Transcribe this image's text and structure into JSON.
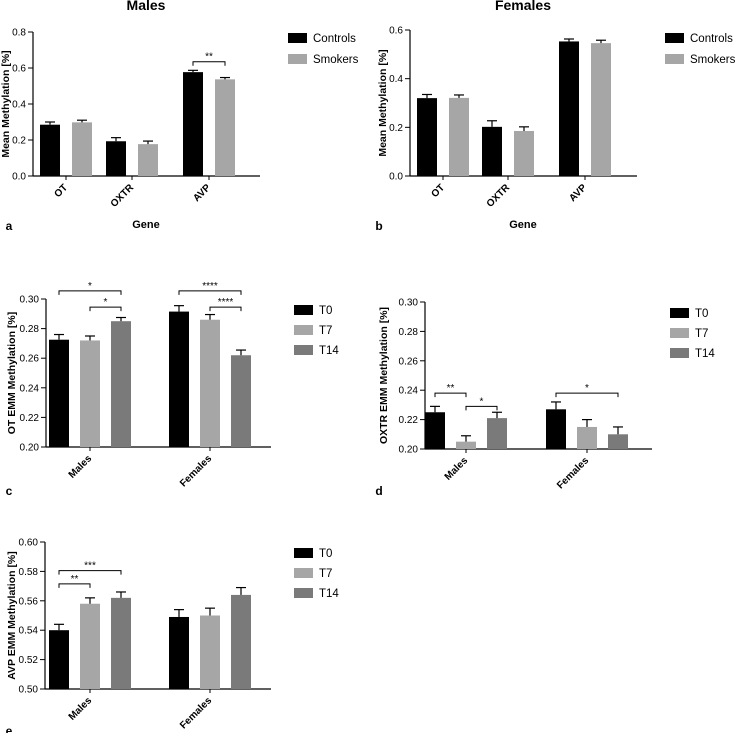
{
  "colors": {
    "black": "#000000",
    "light_gray": "#a6a6a6",
    "mid_gray": "#7a7a7a"
  },
  "chart_data": [
    {
      "panel": "a",
      "type": "bar",
      "title": "Males",
      "xlabel": "Gene",
      "ylabel": "Mean Methylation [%]",
      "categories": [
        "OT",
        "OXTR",
        "AVP"
      ],
      "ylim": [
        0,
        0.8
      ],
      "yticks": [
        "0.0",
        "0.2",
        "0.4",
        "0.6",
        "0.8"
      ],
      "series": [
        {
          "name": "Controls",
          "color": "#000000",
          "values": [
            0.285,
            0.193,
            0.577
          ],
          "errors": [
            0.015,
            0.02,
            0.01
          ]
        },
        {
          "name": "Smokers",
          "color": "#a6a6a6",
          "values": [
            0.298,
            0.177,
            0.537
          ],
          "errors": [
            0.012,
            0.017,
            0.01
          ]
        }
      ],
      "annotations": [
        {
          "label": "**",
          "from": [
            2,
            0
          ],
          "to": [
            2,
            1
          ],
          "y": 0.635
        }
      ]
    },
    {
      "panel": "b",
      "type": "bar",
      "title": "Females",
      "xlabel": "Gene",
      "ylabel": "Mean Methylation [%]",
      "categories": [
        "OT",
        "OXTR",
        "AVP"
      ],
      "ylim": [
        0,
        0.6
      ],
      "yticks": [
        "0.0",
        "0.2",
        "0.4",
        "0.6"
      ],
      "series": [
        {
          "name": "Controls",
          "color": "#000000",
          "values": [
            0.32,
            0.202,
            0.553
          ],
          "errors": [
            0.015,
            0.025,
            0.01
          ]
        },
        {
          "name": "Smokers",
          "color": "#a6a6a6",
          "values": [
            0.321,
            0.185,
            0.546
          ],
          "errors": [
            0.012,
            0.017,
            0.012
          ]
        }
      ],
      "annotations": []
    },
    {
      "panel": "c",
      "type": "bar",
      "ylabel": "OT EMM  Methylation [%]",
      "categories": [
        "Males",
        "Females"
      ],
      "ylim": [
        0.2,
        0.3
      ],
      "yticks": [
        "0.20",
        "0.22",
        "0.24",
        "0.26",
        "0.28",
        "0.30"
      ],
      "series": [
        {
          "name": "T0",
          "color": "#000000",
          "values": [
            0.2725,
            0.2915
          ],
          "errors": [
            0.0035,
            0.004
          ]
        },
        {
          "name": "T7",
          "color": "#a6a6a6",
          "values": [
            0.272,
            0.286
          ],
          "errors": [
            0.003,
            0.0035
          ]
        },
        {
          "name": "T14",
          "color": "#7a7a7a",
          "values": [
            0.285,
            0.262
          ],
          "errors": [
            0.0025,
            0.0035
          ]
        }
      ],
      "annotations": [
        {
          "label": "*",
          "from": [
            0,
            0
          ],
          "to": [
            0,
            2
          ],
          "y": 0.3055
        },
        {
          "label": "*",
          "from": [
            0,
            1
          ],
          "to": [
            0,
            2
          ],
          "y": 0.2945
        },
        {
          "label": "****",
          "from": [
            1,
            0
          ],
          "to": [
            1,
            2
          ],
          "y": 0.3055
        },
        {
          "label": "****",
          "from": [
            1,
            1
          ],
          "to": [
            1,
            2
          ],
          "y": 0.2945
        }
      ]
    },
    {
      "panel": "d",
      "type": "bar",
      "ylabel": "OXTR EMM  Methylation [%]",
      "categories": [
        "Males",
        "Females"
      ],
      "ylim": [
        0.2,
        0.3
      ],
      "yticks": [
        "0.20",
        "0.22",
        "0.24",
        "0.26",
        "0.28",
        "0.30"
      ],
      "series": [
        {
          "name": "T0",
          "color": "#000000",
          "values": [
            0.225,
            0.227
          ],
          "errors": [
            0.004,
            0.005
          ]
        },
        {
          "name": "T7",
          "color": "#a6a6a6",
          "values": [
            0.205,
            0.215
          ],
          "errors": [
            0.004,
            0.005
          ]
        },
        {
          "name": "T14",
          "color": "#7a7a7a",
          "values": [
            0.221,
            0.21
          ],
          "errors": [
            0.004,
            0.005
          ]
        }
      ],
      "annotations": [
        {
          "label": "**",
          "from": [
            0,
            0
          ],
          "to": [
            0,
            1
          ],
          "y": 0.238
        },
        {
          "label": "*",
          "from": [
            0,
            1
          ],
          "to": [
            0,
            2
          ],
          "y": 0.229
        },
        {
          "label": "*",
          "from": [
            1,
            0
          ],
          "to": [
            1,
            2
          ],
          "y": 0.238
        }
      ]
    },
    {
      "panel": "e",
      "type": "bar",
      "ylabel": "AVP EMM  Methylation [%]",
      "categories": [
        "Males",
        "Females"
      ],
      "ylim": [
        0.5,
        0.6
      ],
      "yticks": [
        "0.50",
        "0.52",
        "0.54",
        "0.56",
        "0.58",
        "0.60"
      ],
      "series": [
        {
          "name": "T0",
          "color": "#000000",
          "values": [
            0.54,
            0.549
          ],
          "errors": [
            0.004,
            0.005
          ]
        },
        {
          "name": "T7",
          "color": "#a6a6a6",
          "values": [
            0.558,
            0.55
          ],
          "errors": [
            0.004,
            0.005
          ]
        },
        {
          "name": "T14",
          "color": "#7a7a7a",
          "values": [
            0.562,
            0.564
          ],
          "errors": [
            0.004,
            0.005
          ]
        }
      ],
      "annotations": [
        {
          "label": "**",
          "from": [
            0,
            0
          ],
          "to": [
            0,
            1
          ],
          "y": 0.5715
        },
        {
          "label": "***",
          "from": [
            0,
            0
          ],
          "to": [
            0,
            2
          ],
          "y": 0.5805
        }
      ]
    }
  ]
}
